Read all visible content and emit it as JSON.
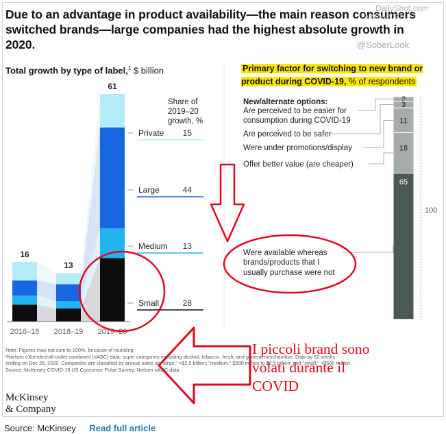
{
  "headline": "Due to an advantage in product availability—the main reason consumers switched brands—large companies had the highest absolute growth in 2020.",
  "watermark": {
    "site": "DailyShot.com",
    "date": "19-Mar-2021",
    "handle": "@SoberLook"
  },
  "left_title": {
    "bold": "Total growth by type of label,",
    "sup": "1",
    "unit": " $ billion"
  },
  "right_title": {
    "bold": "Primary factor for switching to new brand or product during COVID-19,",
    "unit": " % of respondents"
  },
  "notes": [
    "Note: Figures may not sum to 100%, because of rounding.",
    "¹Nielsen eXtended-all-outlet-combined (xAOC) data; super categories excluding alcohol, tobacco, fresh, and general merchandise. Data by 52 weeks",
    "ending on Dec 26, 2020. Companies are classified by annual sales as \"large,\" >$2.5 billion; \"medium,\" $500 million to $2.5 billion; and \"small,\" <$500 million.",
    "Source: McKinsey COVID-19 US Consumer Pulse Survey; Nielsen xAOC data"
  ],
  "logo": {
    "line1": "McKinsey",
    "line2": "& Company"
  },
  "annotation": {
    "line1": "I piccoli brand sono",
    "line2": "volati durante il",
    "line3": "COVID"
  },
  "footer": {
    "source": "Source: McKinsey",
    "link": "Read full article"
  },
  "colors": {
    "private": "#b3ecf7",
    "large": "#1866e0",
    "medium": "#22b3ef",
    "small": "#0d0d0d",
    "red": "#e2061f",
    "bar_dark": "#4a5a56",
    "bar_mid": "#a6acaa",
    "highlight": "#ffe600"
  },
  "chart_data": [
    {
      "type": "bar",
      "title": "Total growth by type of label, $ billion",
      "categories": [
        "2016–18",
        "2018–19",
        "2019–20"
      ],
      "totals": [
        16,
        13,
        61
      ],
      "series": [
        {
          "name": "Small",
          "values": [
            4.5,
            3.5,
            17
          ]
        },
        {
          "name": "Medium",
          "values": [
            2.5,
            2,
            8
          ]
        },
        {
          "name": "Large",
          "values": [
            4,
            4.5,
            27
          ]
        },
        {
          "name": "Private",
          "values": [
            5,
            3,
            9
          ]
        }
      ],
      "share_title": "Share of 2019–20 growth, %",
      "shares": [
        {
          "label": "Private",
          "value": 15
        },
        {
          "label": "Large",
          "value": 44
        },
        {
          "label": "Medium",
          "value": 13
        },
        {
          "label": "Small",
          "value": 28
        }
      ],
      "ylim": [
        0,
        61
      ]
    },
    {
      "type": "bar",
      "title": "Primary factor for switching to new brand or product during COVID-19, % of respondents",
      "group_header": "New/alternate options:",
      "segments": [
        {
          "lines": [
            "Are perceived to be easier for",
            "consumption during COVID-19"
          ],
          "value": 2
        },
        {
          "lines": [
            "Are perceived to be safer"
          ],
          "value": 3
        },
        {
          "lines": [
            "Were under promotions/display"
          ],
          "value": 11
        },
        {
          "lines": [
            "Offer better value (are cheaper)"
          ],
          "value": 18
        },
        {
          "lines": [
            "Were available whereas",
            "brands/products that I",
            "usually purchase were not"
          ],
          "value": 65
        }
      ],
      "total": 100
    }
  ]
}
